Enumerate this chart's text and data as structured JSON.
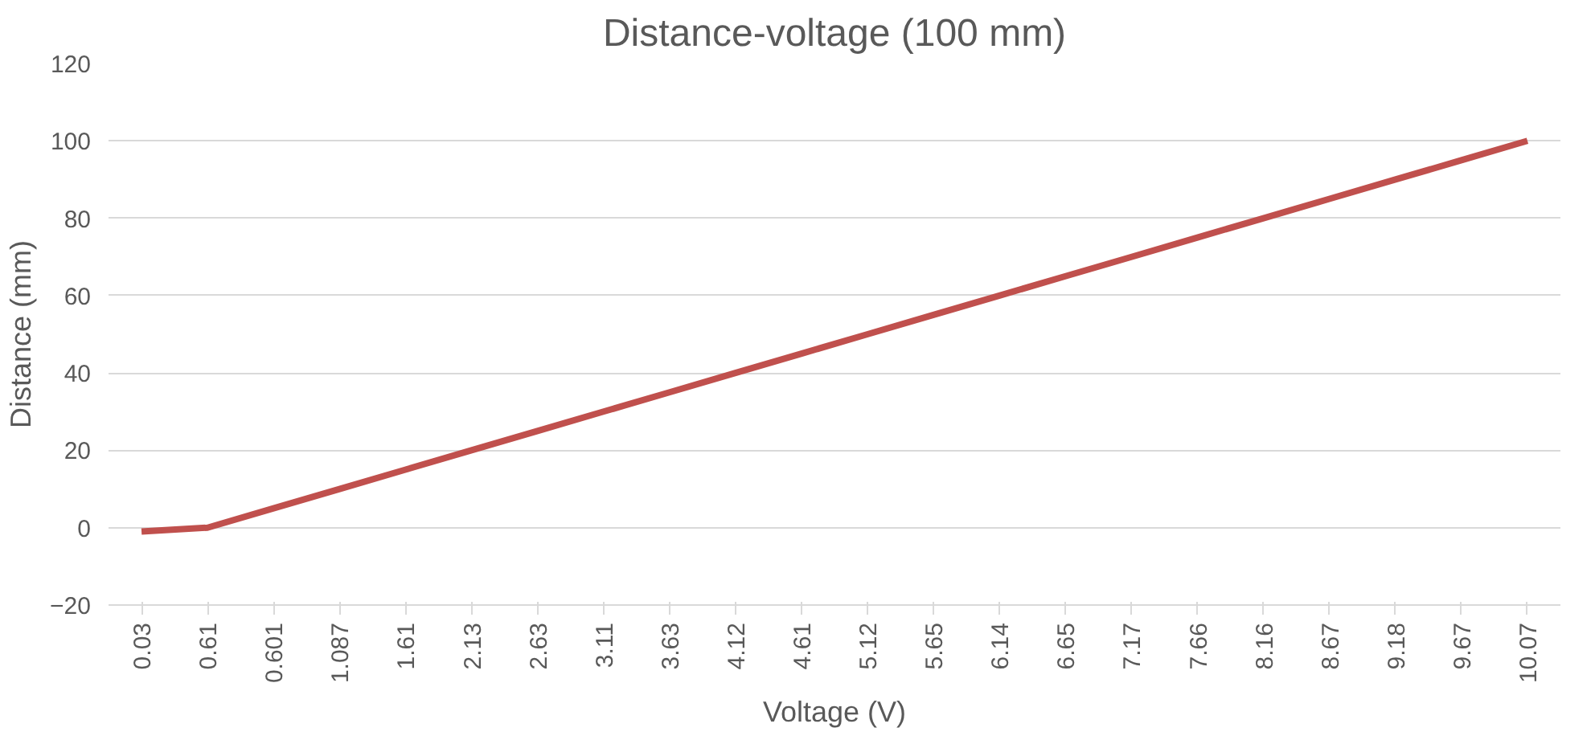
{
  "chart_data": {
    "type": "line",
    "title": "Distance-voltage (100 mm)",
    "xlabel": "Voltage (V)",
    "ylabel": "Distance (mm)",
    "categories": [
      "0.03",
      "0.61",
      "0.601",
      "1.087",
      "1.61",
      "2.13",
      "2.63",
      "3.11",
      "3.63",
      "4.12",
      "4.61",
      "5.12",
      "5.65",
      "6.14",
      "6.65",
      "7.17",
      "7.66",
      "8.16",
      "8.67",
      "9.18",
      "9.67",
      "10.07"
    ],
    "series": [
      {
        "color": "#c0504d",
        "values": [
          -1,
          0,
          5,
          10,
          15,
          20,
          25,
          30,
          35,
          40,
          45,
          50,
          55,
          60,
          65,
          70,
          75,
          80,
          85,
          90,
          95,
          100
        ]
      }
    ],
    "ylim": [
      -20,
      120
    ],
    "yticks": [
      -20,
      0,
      20,
      40,
      60,
      80,
      100,
      120
    ],
    "grid": "y",
    "marker": "none",
    "line_style": "solid"
  }
}
